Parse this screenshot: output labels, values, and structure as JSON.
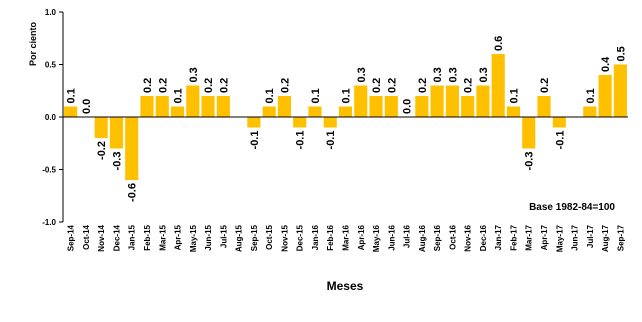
{
  "chart_data": {
    "type": "bar",
    "title": "",
    "xlabel": "Meses",
    "ylabel": "Por ciento",
    "annotation": "Base 1982-84=100",
    "ylim": [
      -1.0,
      1.0
    ],
    "yticks": [
      "1.0",
      "0.5",
      "0.0",
      "-0.5",
      "-1.0"
    ],
    "categories": [
      "Sep-14",
      "Oct-14",
      "Nov-14",
      "Dec-14",
      "Jan-15",
      "Feb-15",
      "Mar-15",
      "Apr-15",
      "May-15",
      "Jun-15",
      "Jul-15",
      "Aug-15",
      "Sep-15",
      "Oct-15",
      "Nov-15",
      "Dec-15",
      "Jan-16",
      "Feb-16",
      "Mar-16",
      "Apr-16",
      "May-16",
      "Jun-16",
      "Jul-16",
      "Aug-16",
      "Sep-16",
      "Oct-16",
      "Nov-16",
      "Dec-16",
      "Jan-17",
      "Feb-17",
      "Mar-17",
      "Apr-17",
      "May-17",
      "Jun-17",
      "Jul-17",
      "Aug-17",
      "Sep-17"
    ],
    "values": [
      0.1,
      0.0,
      -0.2,
      -0.3,
      -0.6,
      0.2,
      0.2,
      0.1,
      0.3,
      0.2,
      0.2,
      0.0,
      -0.1,
      0.1,
      0.2,
      -0.1,
      0.1,
      -0.1,
      0.1,
      0.3,
      0.2,
      0.2,
      0.0,
      0.2,
      0.3,
      0.3,
      0.2,
      0.3,
      0.6,
      0.1,
      -0.3,
      0.2,
      -0.1,
      0.0,
      0.1,
      0.4,
      0.5
    ],
    "labels": [
      "0.1",
      "0.0",
      "-0.2",
      "-0.3",
      "-0.6",
      "0.2",
      "0.2",
      "0.1",
      "0.3",
      "0.2",
      "0.2",
      "",
      "-0.1",
      "0.1",
      "0.2",
      "-0.1",
      "0.1",
      "-0.1",
      "0.1",
      "0.3",
      "0.2",
      "0.2",
      "0.0",
      "0.2",
      "0.3",
      "0.3",
      "0.2",
      "0.3",
      "0.6",
      "0.1",
      "-0.3",
      "0.2",
      "-0.1",
      "",
      "0.1",
      "0.4",
      "0.5"
    ],
    "bar_color": "#FFC000",
    "grid": false
  }
}
